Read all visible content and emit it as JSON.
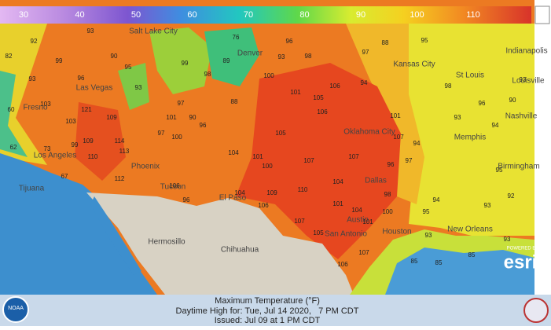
{
  "legend": {
    "labels": [
      30,
      40,
      50,
      60,
      70,
      80,
      90,
      100,
      110
    ]
  },
  "cities": [
    "Salt Lake City",
    "Denver",
    "Kansas City",
    "St Louis",
    "Indianapolis",
    "Louisville",
    "Nashville",
    "Memphis",
    "Birmingham",
    "Oklahoma City",
    "Dallas",
    "Austin",
    "San Antonio",
    "Houston",
    "New Orleans",
    "El Paso",
    "Phoenix",
    "Tucson",
    "Las Vegas",
    "Los Angeles",
    "Fresno",
    "Tijuana",
    "Hermosillo",
    "Chihuahua"
  ],
  "temperatures": [
    93,
    90,
    93,
    96,
    93,
    103,
    103,
    121,
    109,
    99,
    109,
    114,
    113,
    97,
    100,
    101,
    90,
    97,
    96,
    104,
    101,
    100,
    107,
    105,
    106,
    106,
    105,
    100,
    101,
    96,
    93,
    98,
    97,
    94,
    101,
    96,
    107,
    107,
    104,
    110,
    109,
    106,
    107,
    101,
    104,
    101,
    105,
    107,
    106,
    100,
    98,
    97,
    94,
    95,
    93,
    94,
    98,
    93,
    96,
    94,
    93,
    90,
    95,
    92,
    93,
    93,
    88,
    95,
    89,
    76,
    98,
    88,
    99,
    95,
    106,
    110,
    112,
    96,
    104,
    82,
    60,
    62,
    67,
    73,
    92,
    99,
    85,
    85,
    85
  ],
  "footer": {
    "title": "Maximum Temperature (°F)",
    "valid": "Daytime High for: Tue, Jul 14 2020,   7 PM CDT",
    "issued": "Issued: Jul 09 at 1 PM CDT"
  },
  "attribution": {
    "powered_by": "POWERED BY",
    "logo": "esri",
    "agency": "NOAA"
  }
}
